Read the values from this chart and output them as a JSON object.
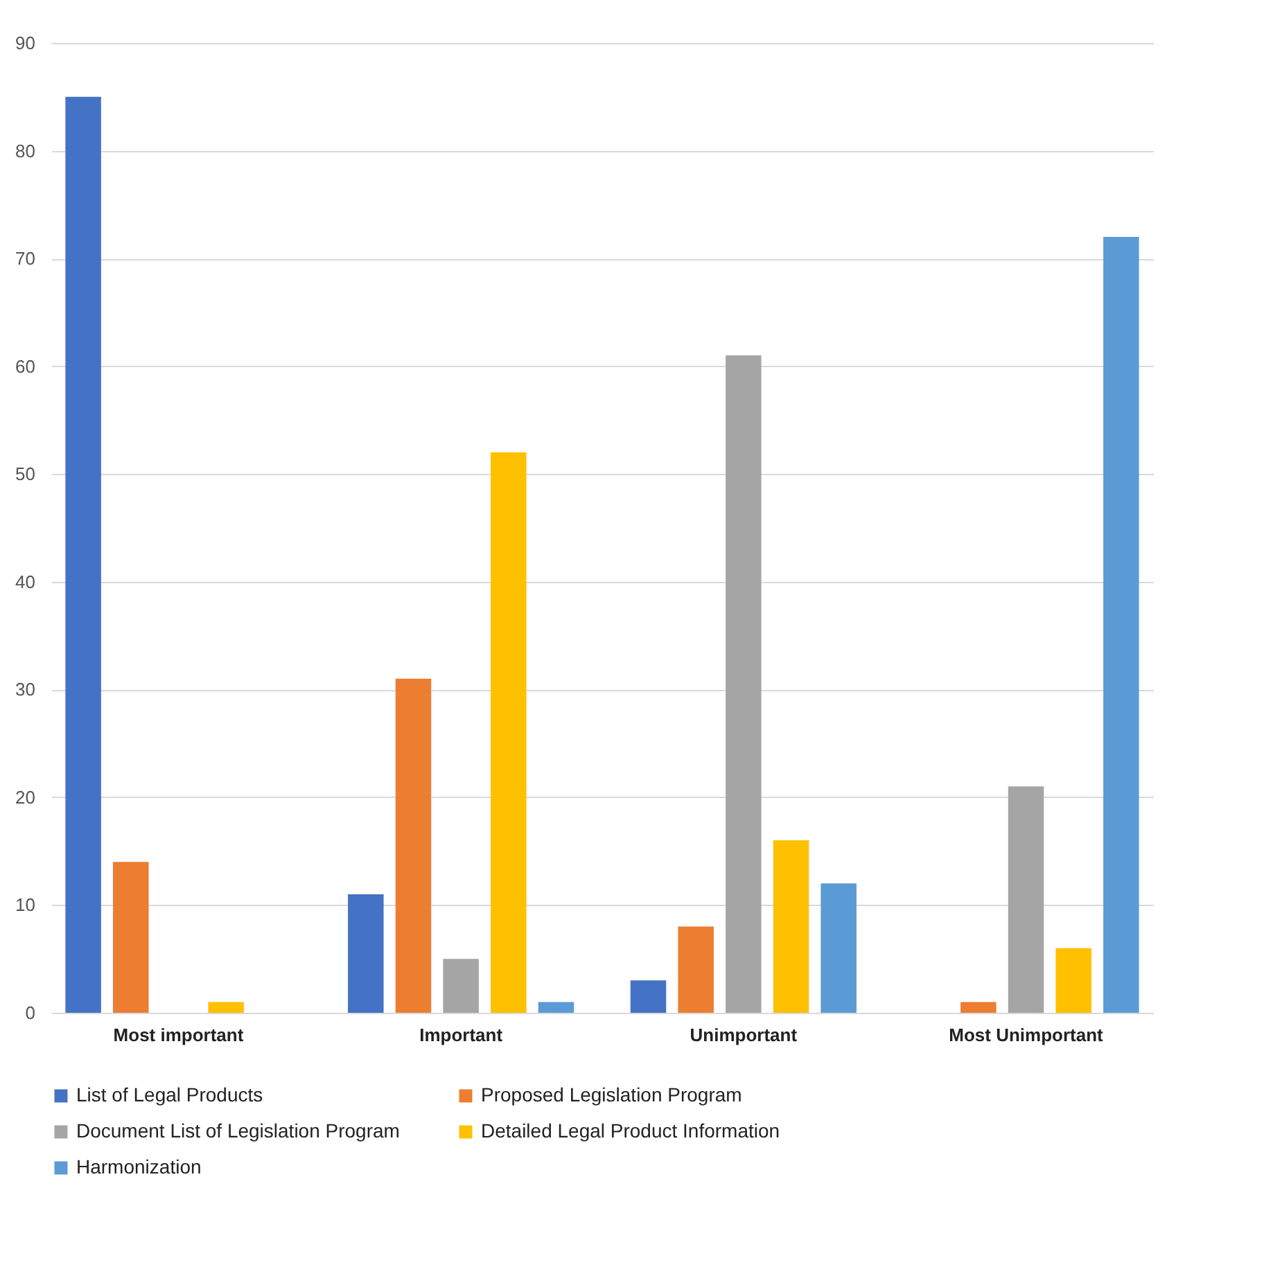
{
  "chart_data": {
    "type": "bar",
    "categories": [
      "Most important",
      "Important",
      "Unimportant",
      "Most Unimportant"
    ],
    "series": [
      {
        "name": "List of Legal Products",
        "color": "#4472c4",
        "values": [
          85,
          11,
          3,
          0
        ]
      },
      {
        "name": "Proposed Legislation Program",
        "color": "#ed7d31",
        "values": [
          14,
          31,
          8,
          1
        ]
      },
      {
        "name": "Document List of Legislation Program",
        "color": "#a5a5a5",
        "values": [
          0,
          5,
          61,
          21
        ]
      },
      {
        "name": "Detailed Legal Product Information",
        "color": "#ffc000",
        "values": [
          1,
          52,
          16,
          6
        ]
      },
      {
        "name": "Harmonization",
        "color": "#5b9bd5",
        "values": [
          0,
          1,
          12,
          72
        ]
      }
    ],
    "ylim": [
      0,
      90
    ],
    "yticks": [
      0,
      10,
      20,
      30,
      40,
      50,
      60,
      70,
      80,
      90
    ],
    "grid": "y",
    "legend": "bottom"
  }
}
